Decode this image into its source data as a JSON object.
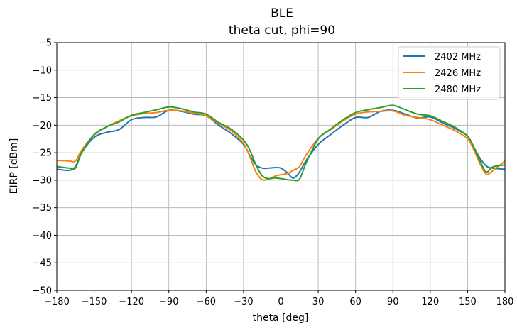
{
  "chart_data": {
    "type": "line",
    "title": "BLE",
    "subtitle": "theta cut, phi=90",
    "xlabel": "theta [deg]",
    "ylabel": "EIRP [dBm]",
    "xlim": [
      -180,
      180
    ],
    "ylim": [
      -50,
      -5
    ],
    "xticks": [
      -180,
      -150,
      -120,
      -90,
      -60,
      -30,
      0,
      30,
      60,
      90,
      120,
      150,
      180
    ],
    "yticks": [
      -50,
      -45,
      -40,
      -35,
      -30,
      -25,
      -20,
      -15,
      -10,
      -5
    ],
    "xtick_labels": [
      "−180",
      "−150",
      "−120",
      "−90",
      "−60",
      "−30",
      "0",
      "30",
      "60",
      "90",
      "120",
      "150",
      "180"
    ],
    "ytick_labels": [
      "−50",
      "−45",
      "−40",
      "−35",
      "−30",
      "−25",
      "−20",
      "−15",
      "−10",
      "−5"
    ],
    "grid": true,
    "legend_position": "top-right",
    "x": [
      -180,
      -170,
      -165,
      -160,
      -150,
      -140,
      -130,
      -120,
      -110,
      -100,
      -90,
      -80,
      -70,
      -60,
      -50,
      -40,
      -30,
      -25,
      -20,
      -15,
      -10,
      -5,
      0,
      5,
      10,
      15,
      20,
      30,
      40,
      50,
      60,
      70,
      80,
      90,
      100,
      110,
      120,
      130,
      140,
      150,
      155,
      160,
      165,
      170,
      180
    ],
    "series": [
      {
        "name": "2402 MHz",
        "color": "#1f77b4",
        "values": [
          -28.0,
          -28.2,
          -27.5,
          -25.0,
          -22.2,
          -21.3,
          -20.8,
          -19.0,
          -18.6,
          -18.5,
          -17.3,
          -17.5,
          -18.0,
          -18.3,
          -20.0,
          -21.5,
          -23.5,
          -25.5,
          -27.2,
          -27.8,
          -27.8,
          -27.7,
          -27.8,
          -28.6,
          -29.6,
          -28.5,
          -26.5,
          -23.5,
          -21.7,
          -20.0,
          -18.6,
          -18.6,
          -17.5,
          -17.3,
          -18.0,
          -18.7,
          -18.5,
          -19.6,
          -20.6,
          -22.0,
          -24.0,
          -26.0,
          -27.4,
          -27.8,
          -28.0
        ]
      },
      {
        "name": "2426 MHz",
        "color": "#ff7f0e",
        "values": [
          -26.4,
          -26.5,
          -26.5,
          -24.5,
          -21.8,
          -20.3,
          -19.2,
          -18.3,
          -17.9,
          -17.7,
          -17.3,
          -17.4,
          -17.8,
          -18.3,
          -19.7,
          -21.0,
          -23.3,
          -25.7,
          -28.5,
          -29.9,
          -29.8,
          -29.3,
          -29.0,
          -28.8,
          -28.2,
          -27.5,
          -25.5,
          -22.4,
          -20.8,
          -19.2,
          -18.0,
          -17.6,
          -17.5,
          -17.4,
          -18.2,
          -18.6,
          -19.0,
          -20.0,
          -21.0,
          -22.5,
          -24.5,
          -27.0,
          -28.9,
          -28.3,
          -26.5
        ]
      },
      {
        "name": "2480 MHz",
        "color": "#2ca02c",
        "values": [
          -27.5,
          -27.8,
          -27.8,
          -25.0,
          -21.7,
          -20.3,
          -19.4,
          -18.2,
          -17.7,
          -17.2,
          -16.7,
          -17.0,
          -17.6,
          -18.0,
          -19.5,
          -20.7,
          -22.7,
          -24.5,
          -27.2,
          -29.2,
          -29.7,
          -29.6,
          -29.7,
          -29.9,
          -30.0,
          -29.8,
          -27.0,
          -22.5,
          -20.7,
          -19.0,
          -17.7,
          -17.2,
          -16.8,
          -16.4,
          -17.2,
          -18.0,
          -18.3,
          -19.3,
          -20.4,
          -22.0,
          -24.0,
          -26.5,
          -28.5,
          -27.6,
          -27.2
        ]
      }
    ]
  }
}
